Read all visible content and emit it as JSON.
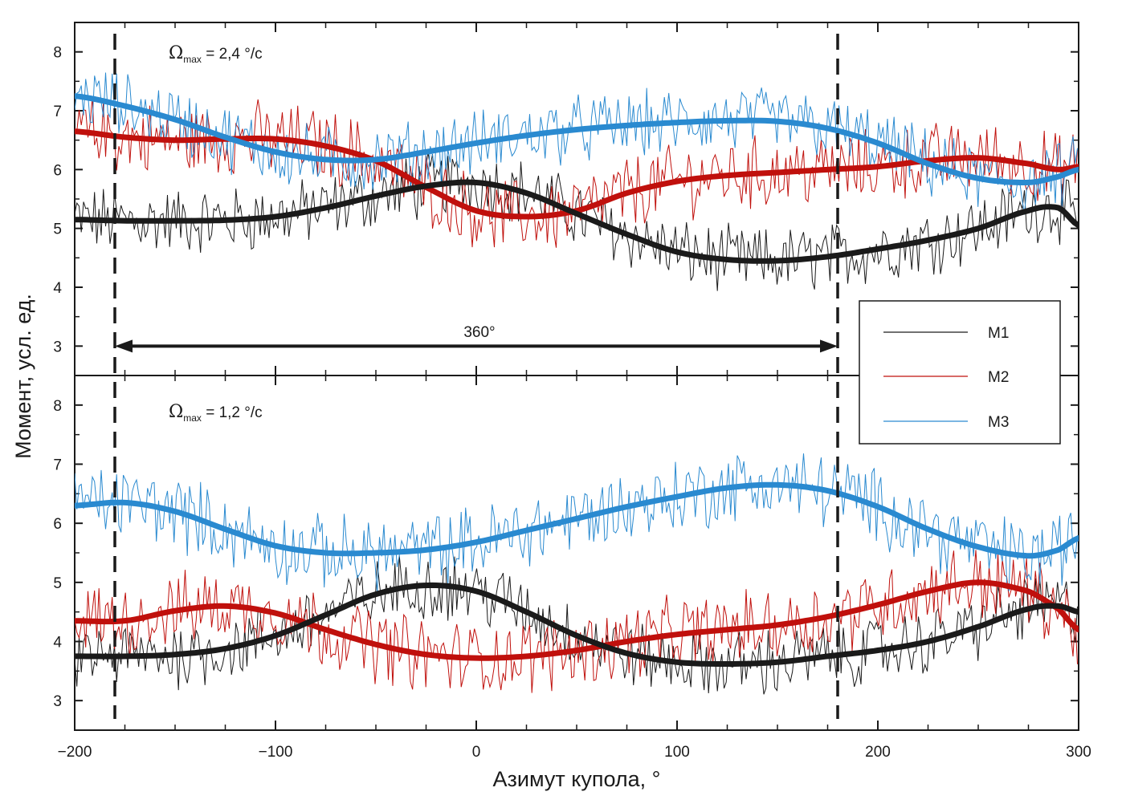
{
  "chart_data": {
    "type": "line",
    "xlabel": "Азимут купола, °",
    "ylabel": "Момент, усл. ед.",
    "xlim": [
      -200,
      300
    ],
    "x_ticks": [
      "−200",
      "−100",
      "0",
      "100",
      "200",
      "300"
    ],
    "x_tick_values": [
      -200,
      -100,
      0,
      100,
      200,
      300
    ],
    "ylim": [
      2.5,
      8.5
    ],
    "y_ticks": [
      "3",
      "4",
      "5",
      "6",
      "7",
      "8"
    ],
    "y_tick_values": [
      3,
      4,
      5,
      6,
      7,
      8
    ],
    "grid": false,
    "legend": {
      "placement": "right, straddling both panels",
      "entries": [
        {
          "label": "M1",
          "color": "#1a1a1a"
        },
        {
          "label": "M2",
          "color": "#c0100c"
        },
        {
          "label": "M3",
          "color": "#2a8ad0"
        }
      ]
    },
    "colors": {
      "M1": "#1a1a1a",
      "M2": "#c0100c",
      "M3": "#2a8ad0"
    },
    "reference_lines": {
      "vertical_dashed_x": [
        -180,
        180
      ],
      "span": {
        "from": -180,
        "to": 180,
        "y": 3.0,
        "label": "360°"
      }
    },
    "panels": [
      {
        "annotation": {
          "symbol": "Ω",
          "subscript": "max",
          "text": " = 2,4 °/с"
        },
        "noise_amplitude": {
          "M1": 0.5,
          "M2": 0.55,
          "M3": 0.5
        },
        "series": [
          {
            "name": "M1",
            "x": [
              -200,
              -175,
              -150,
              -125,
              -100,
              -75,
              -50,
              -25,
              0,
              25,
              50,
              75,
              100,
              125,
              150,
              175,
              200,
              225,
              250,
              275,
              290,
              300
            ],
            "values": [
              5.15,
              5.13,
              5.13,
              5.14,
              5.2,
              5.35,
              5.55,
              5.72,
              5.78,
              5.6,
              5.25,
              4.9,
              4.6,
              4.47,
              4.45,
              4.52,
              4.65,
              4.8,
              5.0,
              5.3,
              5.35,
              5.05
            ]
          },
          {
            "name": "M2",
            "x": [
              -200,
              -175,
              -150,
              -125,
              -100,
              -75,
              -50,
              -25,
              0,
              25,
              50,
              75,
              100,
              125,
              150,
              175,
              200,
              225,
              250,
              275,
              290,
              300
            ],
            "values": [
              6.65,
              6.55,
              6.5,
              6.52,
              6.52,
              6.4,
              6.15,
              5.7,
              5.3,
              5.2,
              5.3,
              5.6,
              5.8,
              5.9,
              5.95,
              6.0,
              6.05,
              6.15,
              6.2,
              6.1,
              6.0,
              6.05
            ]
          },
          {
            "name": "M3",
            "x": [
              -200,
              -175,
              -150,
              -125,
              -100,
              -75,
              -50,
              -25,
              0,
              25,
              50,
              75,
              100,
              125,
              150,
              175,
              200,
              225,
              250,
              275,
              290,
              300
            ],
            "values": [
              7.25,
              7.08,
              6.85,
              6.55,
              6.3,
              6.17,
              6.17,
              6.3,
              6.45,
              6.58,
              6.68,
              6.75,
              6.8,
              6.83,
              6.82,
              6.7,
              6.45,
              6.1,
              5.85,
              5.78,
              5.88,
              6.0
            ]
          }
        ]
      },
      {
        "annotation": {
          "symbol": "Ω",
          "subscript": "max",
          "text": " = 1,2 °/с"
        },
        "noise_amplitude": {
          "M1": 0.5,
          "M2": 0.55,
          "M3": 0.55
        },
        "series": [
          {
            "name": "M1",
            "x": [
              -200,
              -175,
              -150,
              -125,
              -100,
              -75,
              -50,
              -25,
              0,
              25,
              50,
              75,
              100,
              125,
              150,
              175,
              200,
              225,
              250,
              275,
              290,
              300
            ],
            "values": [
              3.75,
              3.75,
              3.78,
              3.88,
              4.1,
              4.45,
              4.8,
              4.95,
              4.85,
              4.5,
              4.1,
              3.8,
              3.65,
              3.62,
              3.65,
              3.75,
              3.85,
              4.0,
              4.25,
              4.55,
              4.6,
              4.5
            ]
          },
          {
            "name": "M2",
            "x": [
              -200,
              -175,
              -150,
              -125,
              -100,
              -75,
              -50,
              -25,
              0,
              25,
              50,
              75,
              100,
              125,
              150,
              175,
              200,
              225,
              250,
              275,
              290,
              300
            ],
            "values": [
              4.35,
              4.35,
              4.52,
              4.6,
              4.48,
              4.2,
              3.95,
              3.78,
              3.72,
              3.75,
              3.85,
              4.0,
              4.12,
              4.2,
              4.28,
              4.42,
              4.62,
              4.85,
              5.0,
              4.85,
              4.55,
              4.2
            ]
          },
          {
            "name": "M3",
            "x": [
              -200,
              -175,
              -150,
              -125,
              -100,
              -75,
              -50,
              -25,
              0,
              25,
              50,
              75,
              100,
              125,
              150,
              175,
              200,
              225,
              250,
              275,
              290,
              300
            ],
            "values": [
              6.3,
              6.35,
              6.2,
              5.9,
              5.62,
              5.5,
              5.5,
              5.55,
              5.68,
              5.88,
              6.08,
              6.28,
              6.45,
              6.6,
              6.65,
              6.55,
              6.28,
              5.9,
              5.6,
              5.45,
              5.55,
              5.75
            ]
          }
        ]
      }
    ]
  }
}
